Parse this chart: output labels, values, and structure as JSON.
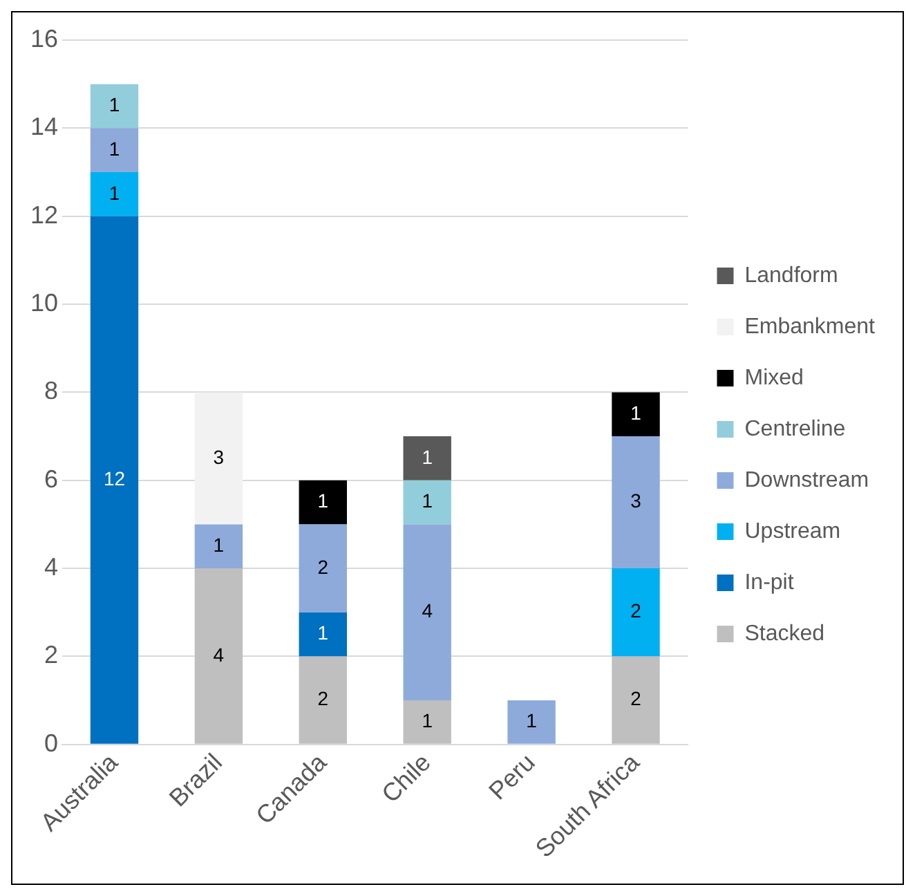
{
  "chart_data": {
    "type": "bar",
    "stacked": true,
    "categories": [
      "Australia",
      "Brazil",
      "Canada",
      "Chile",
      "Peru",
      "South Africa"
    ],
    "series": [
      {
        "name": "Stacked",
        "color": "#bfbfbf",
        "values": [
          null,
          4,
          2,
          1,
          null,
          2
        ]
      },
      {
        "name": "In-pit",
        "color": "#0070c0",
        "values": [
          12,
          null,
          1,
          null,
          null,
          null
        ]
      },
      {
        "name": "Upstream",
        "color": "#00b0f0",
        "values": [
          1,
          null,
          null,
          null,
          null,
          2
        ]
      },
      {
        "name": "Downstream",
        "color": "#8eaadb",
        "values": [
          1,
          1,
          2,
          4,
          1,
          3
        ]
      },
      {
        "name": "Centreline",
        "color": "#92cddc",
        "values": [
          1,
          null,
          null,
          1,
          null,
          null
        ]
      },
      {
        "name": "Mixed",
        "color": "#000000",
        "values": [
          null,
          null,
          1,
          null,
          null,
          1
        ]
      },
      {
        "name": "Embankment",
        "color": "#f2f2f2",
        "values": [
          null,
          3,
          null,
          null,
          null,
          null
        ]
      },
      {
        "name": "Landform",
        "color": "#595959",
        "values": [
          null,
          null,
          null,
          1,
          null,
          null
        ]
      }
    ],
    "ylim": [
      0,
      16
    ],
    "yticks": [
      0,
      2,
      4,
      6,
      8,
      10,
      12,
      14,
      16
    ],
    "grid": "y",
    "legend": "right",
    "data_labels": true
  }
}
